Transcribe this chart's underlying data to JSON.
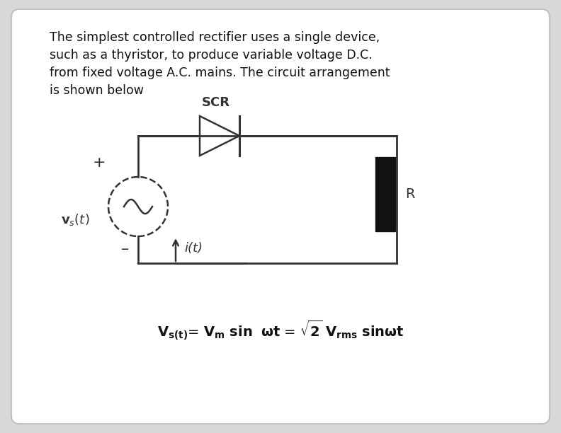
{
  "title_text": "The simplest controlled rectifier uses a single device,\nsuch as a thyristor, to produce variable voltage D.C.\nfrom fixed voltage A.C. mains. The circuit arrangement\nis shown below",
  "bg_color": "#d8d8d8",
  "box_edge_color": "#bbbbbb",
  "text_color": "#111111",
  "circuit_color": "#333333",
  "resistor_color": "#111111",
  "title_fontsize": 12.5,
  "formula_fontsize": 12,
  "scr_label": "SCR",
  "r_label": "R",
  "plus_label": "+",
  "minus_label": "–",
  "vs_label": "$\\mathbf{v}_s(t)$",
  "it_label": "i(t)"
}
